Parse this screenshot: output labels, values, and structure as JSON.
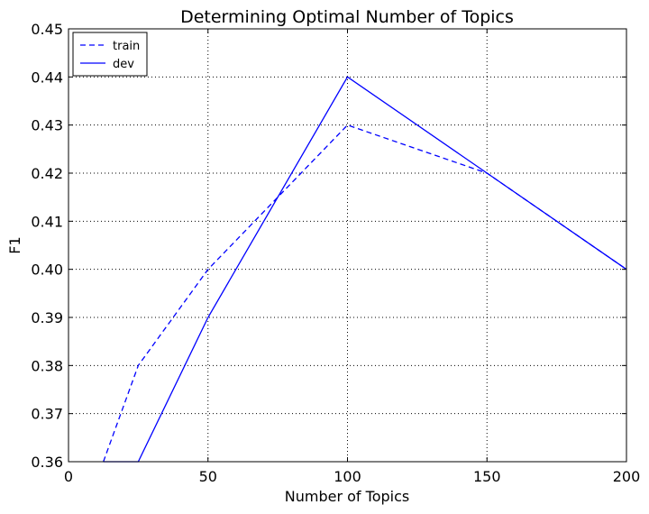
{
  "chart_data": {
    "type": "line",
    "title": "Determining Optimal Number of Topics",
    "xlabel": "Number of Topics",
    "ylabel": "F1",
    "xlim": [
      0,
      200
    ],
    "ylim": [
      0.36,
      0.45
    ],
    "xticks": [
      0,
      50,
      100,
      150,
      200
    ],
    "xtick_labels": [
      "0",
      "50",
      "100",
      "150",
      "200"
    ],
    "yticks": [
      0.36,
      0.37,
      0.38,
      0.39,
      0.4,
      0.41,
      0.42,
      0.43,
      0.44,
      0.45
    ],
    "ytick_labels": [
      "0.36",
      "0.37",
      "0.38",
      "0.39",
      "0.40",
      "0.41",
      "0.42",
      "0.43",
      "0.44",
      "0.45"
    ],
    "grid": true,
    "legend_position": "top-left",
    "series": [
      {
        "name": "train",
        "style": "dashed",
        "color": "#0000ff",
        "x": [
          12.5,
          25,
          50,
          100,
          150,
          200
        ],
        "y": [
          0.36,
          0.38,
          0.4,
          0.43,
          0.42,
          0.4
        ]
      },
      {
        "name": "dev",
        "style": "solid",
        "color": "#0000ff",
        "x": [
          12.5,
          25,
          50,
          100,
          150,
          200
        ],
        "y": [
          0.36,
          0.36,
          0.39,
          0.44,
          0.42,
          0.4
        ]
      }
    ]
  }
}
